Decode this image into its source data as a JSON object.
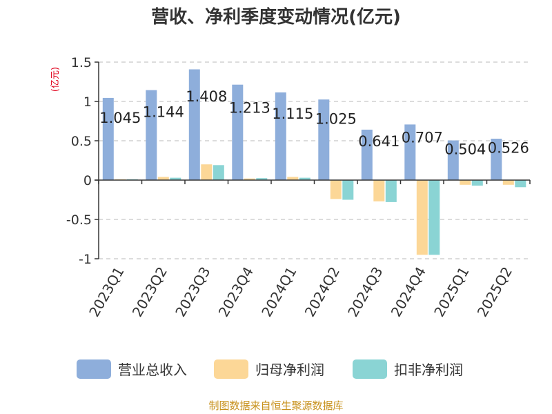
{
  "chart_data": {
    "type": "bar",
    "title": "营收、净利季度变动情况(亿元)",
    "unit_label": "(亿元)",
    "categories": [
      "2023Q1",
      "2023Q2",
      "2023Q3",
      "2023Q4",
      "2024Q1",
      "2024Q2",
      "2024Q3",
      "2024Q4",
      "2025Q1",
      "2025Q2"
    ],
    "series": [
      {
        "name": "营业总收入",
        "color": "#8eaedb",
        "values": [
          1.045,
          1.144,
          1.408,
          1.213,
          1.115,
          1.025,
          0.641,
          0.707,
          0.504,
          0.526
        ]
      },
      {
        "name": "归母净利润",
        "color": "#fcd797",
        "values": [
          0.01,
          0.04,
          0.2,
          0.02,
          0.04,
          -0.24,
          -0.27,
          -0.95,
          -0.06,
          -0.06
        ]
      },
      {
        "name": "扣非净利润",
        "color": "#8ad4d4",
        "values": [
          0.005,
          0.03,
          0.19,
          0.025,
          0.03,
          -0.25,
          -0.28,
          -0.95,
          -0.07,
          -0.09
        ]
      }
    ],
    "data_labels": [
      "1.045",
      "1.144",
      "1.408",
      "1.213",
      "1.115",
      "1.025",
      "0.641",
      "0.707",
      "0.504",
      "0.526"
    ],
    "yticks": [
      1.5,
      1,
      0.5,
      0,
      -0.5,
      -1
    ],
    "ytick_labels": [
      "1.5",
      "1",
      "0.5",
      "0",
      "-0.5",
      "-1"
    ],
    "ylim": [
      -1,
      1.5
    ],
    "grid": true,
    "legend_position": "bottom"
  },
  "source_text": "制图数据来自恒生聚源数据库"
}
